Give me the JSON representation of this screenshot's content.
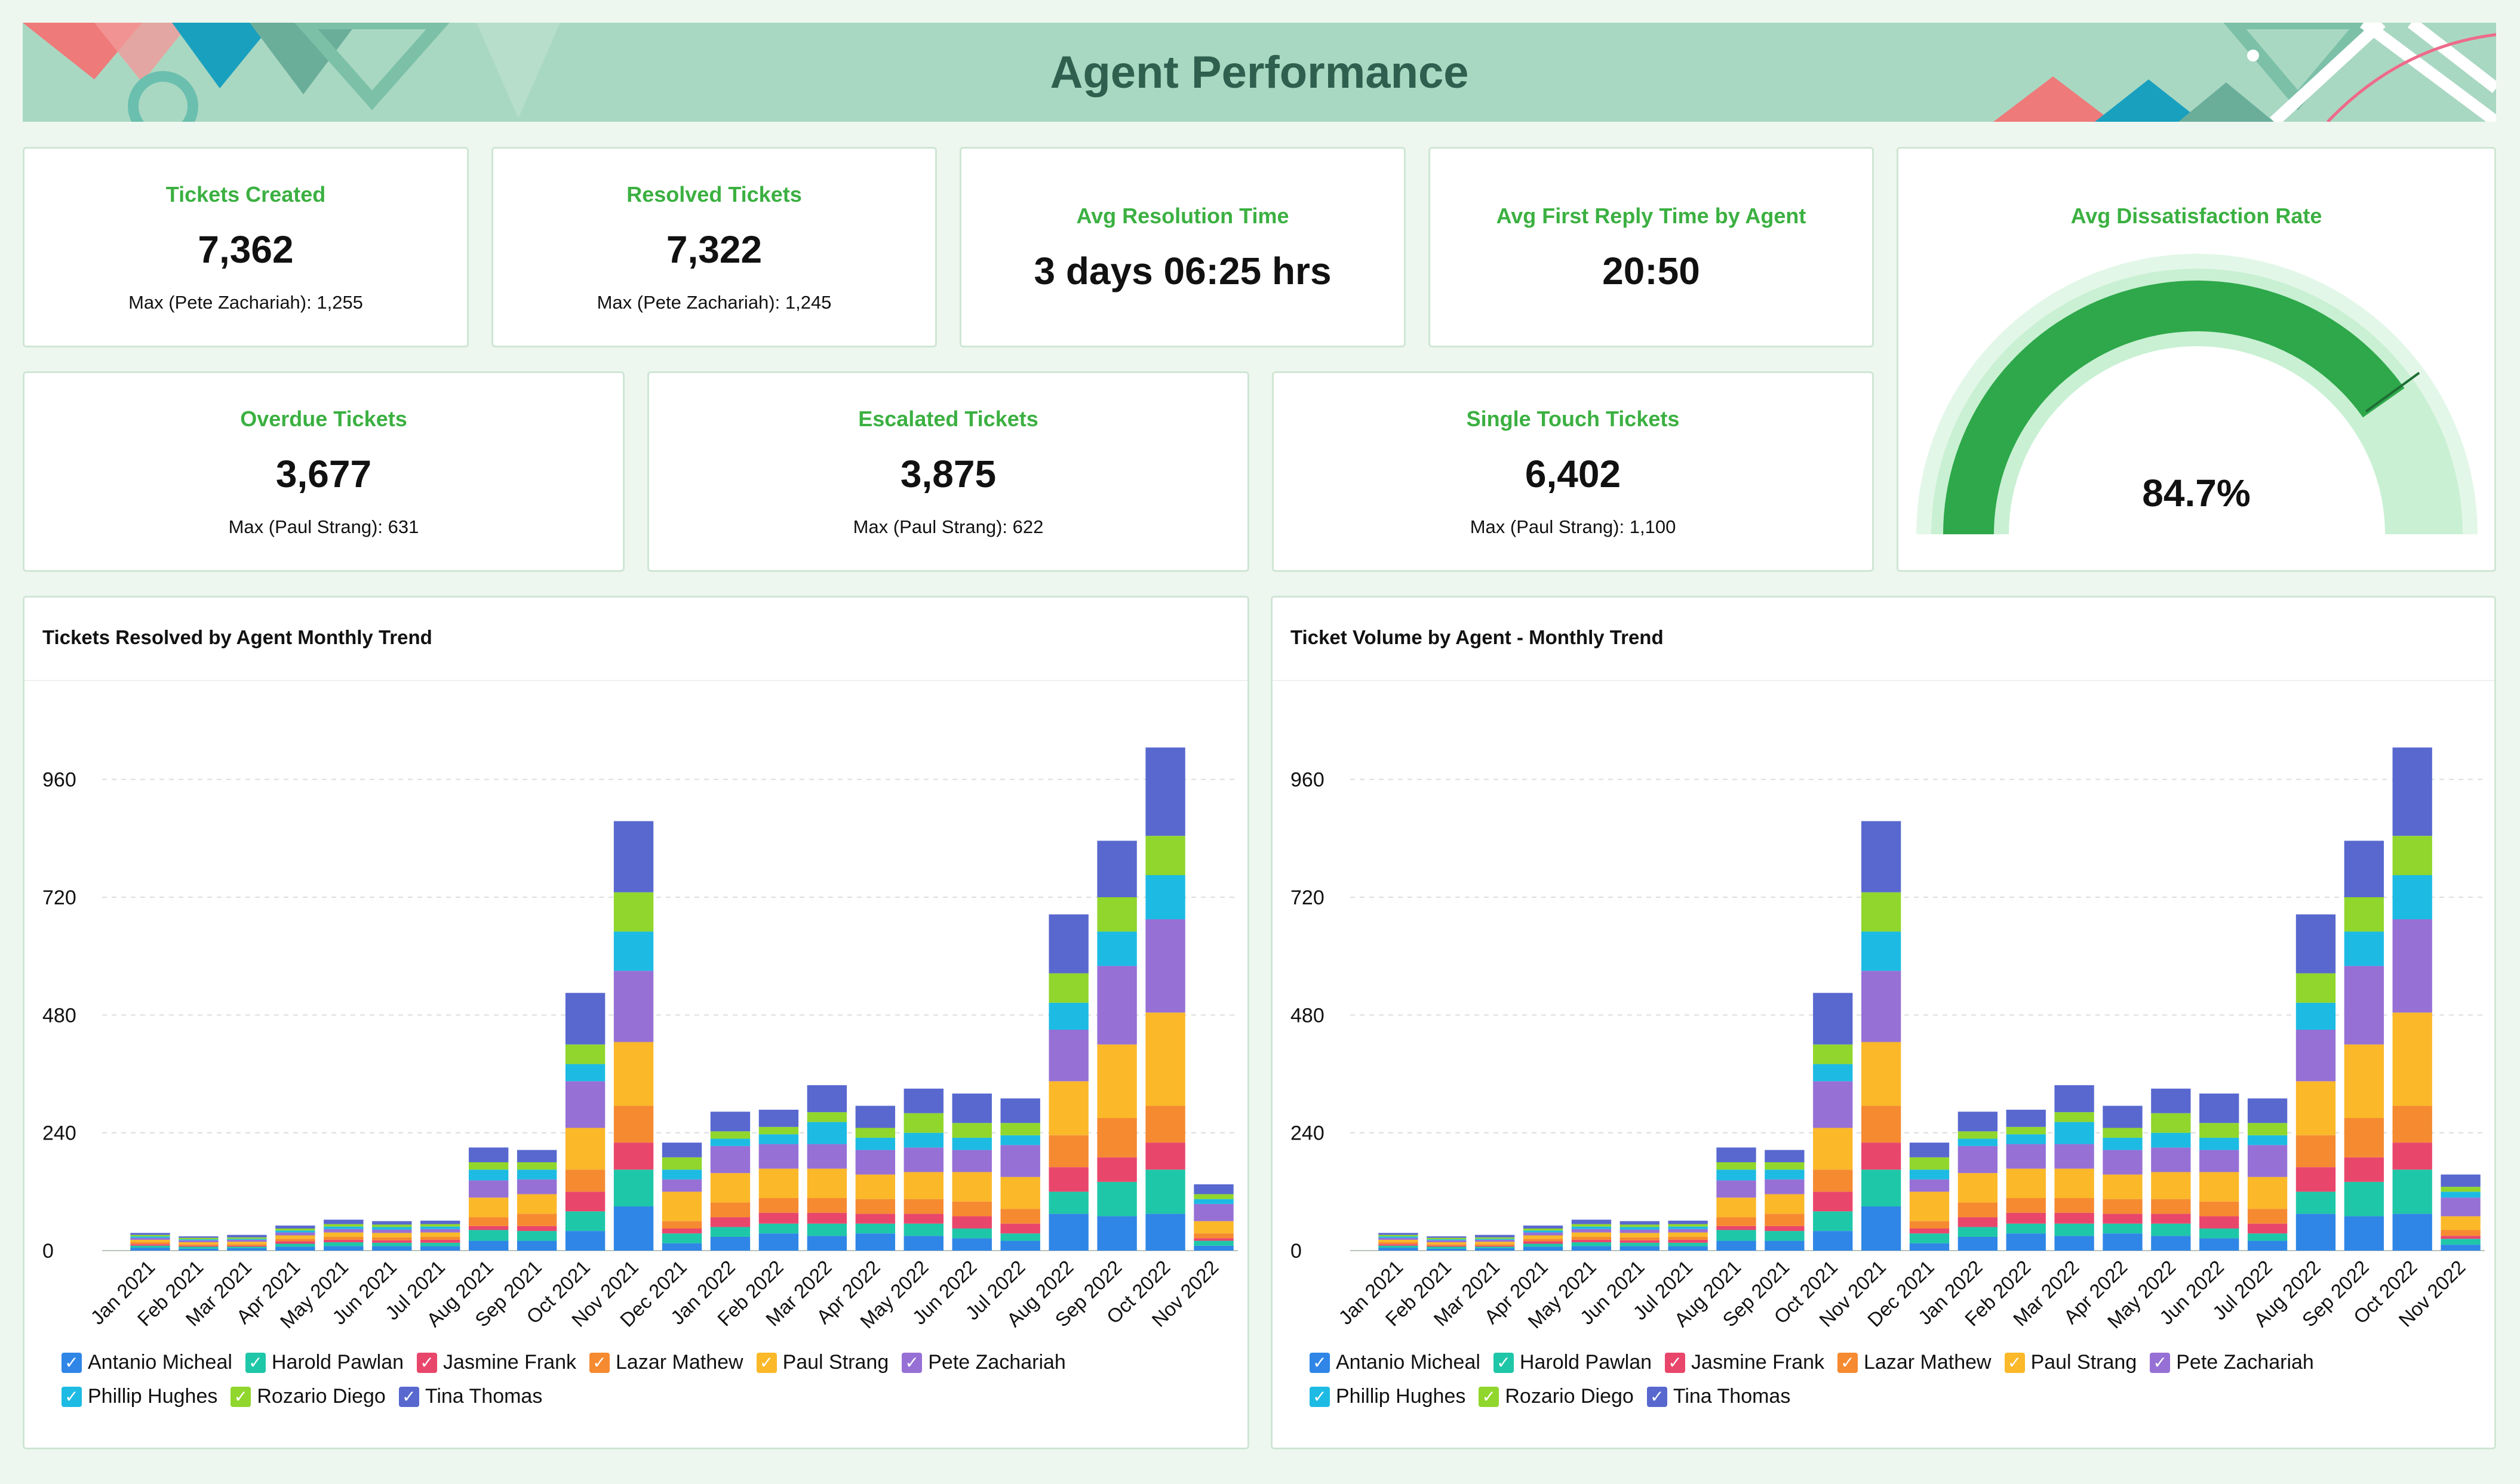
{
  "header": {
    "title": "Agent Performance"
  },
  "kpis": {
    "tickets_created": {
      "title": "Tickets Created",
      "value": "7,362",
      "sub": "Max (Pete Zachariah): 1,255"
    },
    "resolved_tickets": {
      "title": "Resolved Tickets",
      "value": "7,322",
      "sub": "Max (Pete Zachariah): 1,245"
    },
    "avg_resolution": {
      "title": "Avg Resolution Time",
      "value": "3 days 06:25 hrs"
    },
    "avg_first_reply": {
      "title": "Avg First Reply Time by Agent",
      "value": "20:50"
    },
    "dissatisfaction": {
      "title": "Avg Dissatisfaction Rate",
      "value": "84.7%",
      "fraction": 0.847
    },
    "overdue": {
      "title": "Overdue Tickets",
      "value": "3,677",
      "sub": "Max (Paul Strang): 631"
    },
    "escalated": {
      "title": "Escalated Tickets",
      "value": "3,875",
      "sub": "Max (Paul Strang): 622"
    },
    "single_touch": {
      "title": "Single Touch Tickets",
      "value": "6,402",
      "sub": "Max (Paul Strang): 1,100"
    }
  },
  "chart_data": [
    {
      "type": "bar",
      "stacked": true,
      "title": "Tickets Resolved by Agent Monthly Trend",
      "categories": [
        "Jan 2021",
        "Feb 2021",
        "Mar 2021",
        "Apr 2021",
        "May 2021",
        "Jun 2021",
        "Jul 2021",
        "Aug 2021",
        "Sep 2021",
        "Oct 2021",
        "Nov 2021",
        "Dec 2021",
        "Jan 2022",
        "Feb 2022",
        "Mar 2022",
        "Apr 2022",
        "May 2022",
        "Jun 2022",
        "Jul 2022",
        "Aug 2022",
        "Sep 2022",
        "Oct 2022",
        "Nov 2022"
      ],
      "yticks": [
        0,
        240,
        480,
        720,
        960
      ],
      "ylim": [
        0,
        1080
      ],
      "grid": true,
      "legend_position": "bottom",
      "series": [
        {
          "name": "Antanio Micheal",
          "color": "#2f86e6",
          "values": [
            6,
            4,
            5,
            8,
            9,
            9,
            9,
            20,
            20,
            40,
            90,
            15,
            28,
            35,
            30,
            35,
            30,
            25,
            20,
            75,
            70,
            75,
            10
          ]
        },
        {
          "name": "Harold Pawlan",
          "color": "#1fc7a9",
          "values": [
            4,
            4,
            3,
            6,
            8,
            7,
            7,
            22,
            20,
            40,
            75,
            20,
            20,
            20,
            25,
            20,
            25,
            20,
            15,
            45,
            70,
            90,
            10
          ]
        },
        {
          "name": "Jasmine Frank",
          "color": "#e9466c",
          "values": [
            3,
            2,
            2,
            5,
            5,
            5,
            6,
            8,
            10,
            40,
            55,
            10,
            20,
            22,
            22,
            20,
            20,
            25,
            20,
            50,
            50,
            55,
            5
          ]
        },
        {
          "name": "Lazar Mathew",
          "color": "#f58a31",
          "values": [
            4,
            3,
            3,
            5,
            6,
            6,
            6,
            18,
            25,
            45,
            75,
            15,
            30,
            30,
            30,
            30,
            30,
            30,
            30,
            65,
            80,
            75,
            10
          ]
        },
        {
          "name": "Paul Strang",
          "color": "#fbb829",
          "values": [
            5,
            4,
            5,
            7,
            9,
            9,
            9,
            40,
            40,
            85,
            130,
            60,
            60,
            60,
            60,
            50,
            55,
            60,
            65,
            110,
            150,
            190,
            25
          ]
        },
        {
          "name": "Pete Zachariah",
          "color": "#9670d5",
          "values": [
            4,
            4,
            4,
            6,
            7,
            7,
            7,
            35,
            30,
            95,
            145,
            25,
            55,
            50,
            50,
            50,
            50,
            45,
            65,
            105,
            160,
            190,
            35
          ]
        },
        {
          "name": "Phillip Hughes",
          "color": "#1dbbe3",
          "values": [
            3,
            2,
            2,
            4,
            5,
            5,
            5,
            22,
            20,
            35,
            80,
            20,
            15,
            20,
            45,
            25,
            30,
            25,
            20,
            55,
            70,
            90,
            10
          ]
        },
        {
          "name": "Rozario Diego",
          "color": "#90d62c",
          "values": [
            3,
            3,
            3,
            4,
            5,
            5,
            5,
            15,
            15,
            40,
            80,
            25,
            15,
            15,
            20,
            20,
            40,
            30,
            25,
            60,
            70,
            80,
            10
          ]
        },
        {
          "name": "Tina Thomas",
          "color": "#5868cf",
          "values": [
            4,
            3,
            5,
            6,
            9,
            7,
            7,
            30,
            25,
            105,
            145,
            30,
            40,
            35,
            55,
            45,
            50,
            60,
            50,
            120,
            115,
            180,
            20
          ]
        }
      ]
    },
    {
      "type": "bar",
      "stacked": true,
      "title": "Ticket Volume by Agent - Monthly Trend",
      "categories": [
        "Jan 2021",
        "Feb 2021",
        "Mar 2021",
        "Apr 2021",
        "May 2021",
        "Jun 2021",
        "Jul 2021",
        "Aug 2021",
        "Sep 2021",
        "Oct 2021",
        "Nov 2021",
        "Dec 2021",
        "Jan 2022",
        "Feb 2022",
        "Mar 2022",
        "Apr 2022",
        "May 2022",
        "Jun 2022",
        "Jul 2022",
        "Aug 2022",
        "Sep 2022",
        "Oct 2022",
        "Nov 2022"
      ],
      "yticks": [
        0,
        240,
        480,
        720,
        960
      ],
      "ylim": [
        0,
        1080
      ],
      "grid": true,
      "legend_position": "bottom",
      "series": [
        {
          "name": "Antanio Micheal",
          "color": "#2f86e6",
          "values": [
            6,
            4,
            5,
            8,
            9,
            9,
            9,
            20,
            20,
            40,
            90,
            15,
            28,
            35,
            30,
            35,
            30,
            25,
            20,
            75,
            70,
            75,
            12
          ]
        },
        {
          "name": "Harold Pawlan",
          "color": "#1fc7a9",
          "values": [
            4,
            4,
            3,
            6,
            8,
            7,
            7,
            22,
            20,
            40,
            75,
            20,
            20,
            20,
            25,
            20,
            25,
            20,
            15,
            45,
            70,
            90,
            12
          ]
        },
        {
          "name": "Jasmine Frank",
          "color": "#e9466c",
          "values": [
            3,
            2,
            2,
            5,
            5,
            5,
            6,
            8,
            10,
            40,
            55,
            10,
            20,
            22,
            22,
            20,
            20,
            25,
            20,
            50,
            50,
            55,
            6
          ]
        },
        {
          "name": "Lazar Mathew",
          "color": "#f58a31",
          "values": [
            4,
            3,
            3,
            5,
            6,
            6,
            6,
            18,
            25,
            45,
            75,
            15,
            30,
            30,
            30,
            30,
            30,
            30,
            30,
            65,
            80,
            75,
            12
          ]
        },
        {
          "name": "Paul Strang",
          "color": "#fbb829",
          "values": [
            5,
            4,
            5,
            7,
            9,
            9,
            9,
            40,
            40,
            85,
            130,
            60,
            60,
            60,
            60,
            50,
            55,
            60,
            65,
            110,
            150,
            190,
            28
          ]
        },
        {
          "name": "Pete Zachariah",
          "color": "#9670d5",
          "values": [
            4,
            4,
            4,
            6,
            7,
            7,
            7,
            35,
            30,
            95,
            145,
            25,
            55,
            50,
            50,
            50,
            50,
            45,
            65,
            105,
            160,
            190,
            38
          ]
        },
        {
          "name": "Phillip Hughes",
          "color": "#1dbbe3",
          "values": [
            3,
            2,
            2,
            4,
            5,
            5,
            5,
            22,
            20,
            35,
            80,
            20,
            15,
            20,
            45,
            25,
            30,
            25,
            20,
            55,
            70,
            90,
            12
          ]
        },
        {
          "name": "Rozario Diego",
          "color": "#90d62c",
          "values": [
            3,
            3,
            3,
            4,
            5,
            5,
            5,
            15,
            15,
            40,
            80,
            25,
            15,
            15,
            20,
            20,
            40,
            30,
            25,
            60,
            70,
            80,
            10
          ]
        },
        {
          "name": "Tina Thomas",
          "color": "#5868cf",
          "values": [
            4,
            3,
            5,
            6,
            9,
            7,
            7,
            30,
            25,
            105,
            145,
            30,
            40,
            35,
            55,
            45,
            50,
            60,
            50,
            120,
            115,
            180,
            25
          ]
        }
      ]
    }
  ]
}
